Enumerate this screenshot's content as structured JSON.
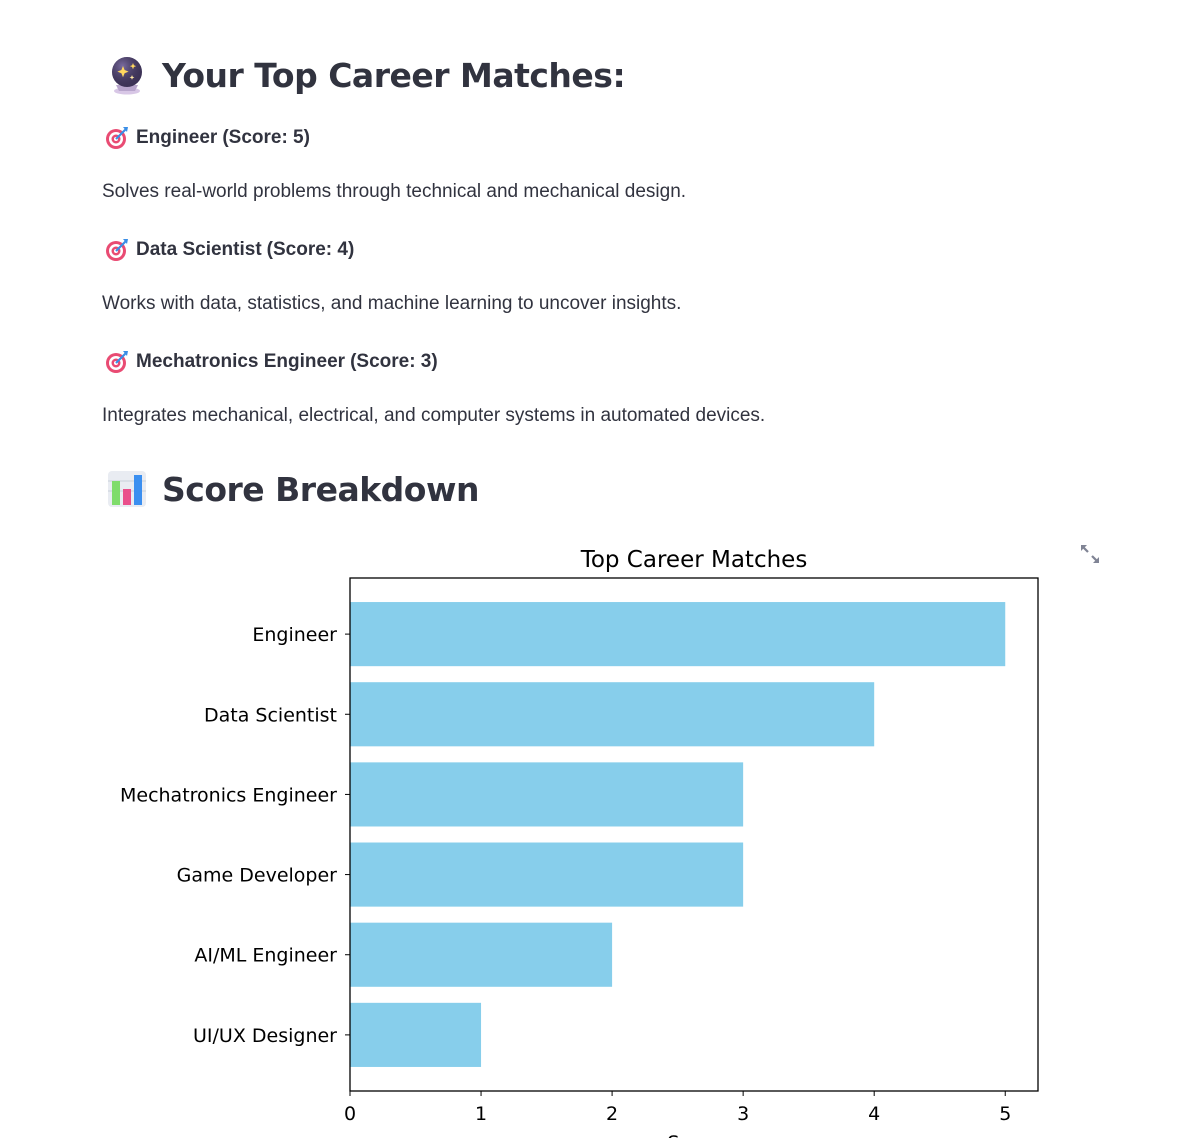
{
  "matches_section": {
    "title": "Your Top Career Matches:",
    "icon": "crystal-ball-icon"
  },
  "matches": [
    {
      "name": "Engineer",
      "score_text": "(Score: 5)",
      "description": "Solves real-world problems through technical and mechanical design.",
      "icon": "direct-hit-icon"
    },
    {
      "name": "Data Scientist",
      "score_text": "(Score: 4)",
      "description": "Works with data, statistics, and machine learning to uncover insights.",
      "icon": "direct-hit-icon"
    },
    {
      "name": "Mechatronics Engineer",
      "score_text": "(Score: 3)",
      "description": "Integrates mechanical, electrical, and computer systems in automated devices.",
      "icon": "direct-hit-icon"
    }
  ],
  "breakdown_section": {
    "title": "Score Breakdown",
    "icon": "bar-chart-icon"
  },
  "chart_toolbar": {
    "expand_icon": "fullscreen-expand-icon"
  },
  "chart_data": {
    "type": "bar",
    "orientation": "horizontal",
    "title": "Top Career Matches",
    "xlabel": "Score",
    "ylabel": "",
    "categories": [
      "Engineer",
      "Data Scientist",
      "Mechatronics Engineer",
      "Game Developer",
      "AI/ML Engineer",
      "UI/UX Designer"
    ],
    "values": [
      5,
      4,
      3,
      3,
      2,
      1
    ],
    "xlim": [
      0,
      5.25
    ],
    "xticks": [
      0,
      1,
      2,
      3,
      4,
      5
    ],
    "grid": false,
    "bar_color": "#87ceeb"
  }
}
